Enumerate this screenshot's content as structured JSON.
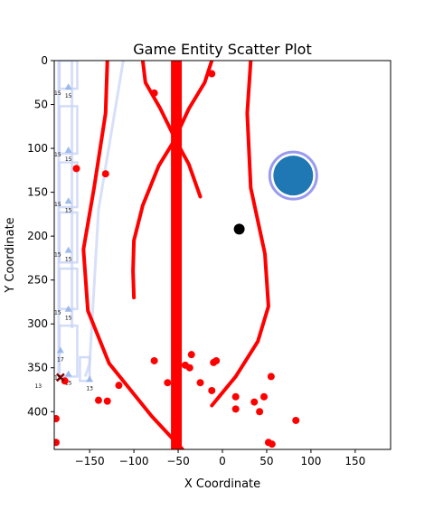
{
  "chart_data": {
    "type": "scatter",
    "title": "Game Entity Scatter Plot",
    "xlabel": "X Coordinate",
    "ylabel": "Y Coordinate",
    "xlim": [
      -190,
      190
    ],
    "ylim": [
      443,
      0
    ],
    "y_inverted": true,
    "grid": false,
    "xticks": [
      -150,
      -100,
      -50,
      0,
      50,
      100,
      150
    ],
    "yticks": [
      0,
      50,
      100,
      150,
      200,
      250,
      300,
      350,
      400
    ],
    "colors": {
      "red": "#ff0000",
      "blue": "#1f77b4",
      "ring": "#6f6fe8",
      "light_blue": "#c7d3f7",
      "marker_blue": "#8fb0e8",
      "dark_red": "#8b0000",
      "black": "#000000"
    },
    "red_points": [
      [
        -77,
        37
      ],
      [
        -12,
        15
      ],
      [
        -165,
        123
      ],
      [
        -132,
        129
      ],
      [
        -178,
        365
      ],
      [
        -77,
        342
      ],
      [
        -35,
        335
      ],
      [
        -10,
        344
      ],
      [
        -7,
        342
      ],
      [
        -42,
        347
      ],
      [
        -37,
        350
      ],
      [
        -62,
        367
      ],
      [
        -25,
        367
      ],
      [
        -12,
        376
      ],
      [
        -117,
        370
      ],
      [
        -140,
        387
      ],
      [
        -130,
        388
      ],
      [
        15,
        383
      ],
      [
        15,
        397
      ],
      [
        47,
        383
      ],
      [
        55,
        360
      ],
      [
        36,
        389
      ],
      [
        42,
        400
      ],
      [
        83,
        410
      ],
      [
        -188,
        408
      ],
      [
        -188,
        435
      ],
      [
        52,
        435
      ],
      [
        56,
        437
      ]
    ],
    "black_point": [
      19,
      192
    ],
    "blue_circle": [
      80,
      131
    ],
    "x_marker": [
      -183,
      361
    ],
    "red_lines": [
      {
        "points": [
          [
            -52,
            0
          ],
          [
            -52,
            443
          ]
        ],
        "width": 12
      },
      {
        "points": [
          [
            -130,
            0
          ],
          [
            -132,
            60
          ],
          [
            -145,
            145
          ],
          [
            -157,
            215
          ],
          [
            -152,
            285
          ],
          [
            -128,
            345
          ],
          [
            -80,
            405
          ],
          [
            -45,
            443
          ]
        ],
        "width": 4
      },
      {
        "points": [
          [
            -90,
            0
          ],
          [
            -87,
            25
          ],
          [
            -70,
            55
          ],
          [
            -52,
            92
          ],
          [
            -38,
            118
          ],
          [
            -25,
            155
          ]
        ],
        "width": 4
      },
      {
        "points": [
          [
            -12,
            0
          ],
          [
            -20,
            25
          ],
          [
            -38,
            55
          ],
          [
            -55,
            92
          ],
          [
            -72,
            120
          ],
          [
            -90,
            165
          ],
          [
            -100,
            205
          ],
          [
            -101,
            240
          ],
          [
            -100,
            270
          ]
        ],
        "width": 4
      },
      {
        "points": [
          [
            32,
            0
          ],
          [
            28,
            60
          ],
          [
            32,
            145
          ],
          [
            48,
            220
          ],
          [
            52,
            280
          ],
          [
            40,
            320
          ],
          [
            15,
            360
          ],
          [
            -12,
            393
          ]
        ],
        "width": 4
      }
    ],
    "light_lines": [
      [
        [
          -112,
          0
        ],
        [
          -140,
          170
        ],
        [
          -150,
          345
        ],
        [
          -155,
          360
        ]
      ],
      [
        [
          -185,
          0
        ],
        [
          -185,
          360
        ]
      ],
      [
        [
          -170,
          0
        ],
        [
          -170,
          305
        ]
      ]
    ],
    "light_boxes": [
      [
        -184,
        0,
        -164,
        32
      ],
      [
        -184,
        52,
        -164,
        106
      ],
      [
        -184,
        116,
        -164,
        167
      ],
      [
        -184,
        173,
        -164,
        230
      ],
      [
        -184,
        237,
        -164,
        283
      ],
      [
        -184,
        302,
        -164,
        360
      ],
      [
        -161,
        338,
        -150,
        365
      ]
    ],
    "triangles": [
      {
        "xy": [
          -174,
          30
        ],
        "label": "15"
      },
      {
        "xy": [
          -174,
          102
        ],
        "label": "15"
      },
      {
        "xy": [
          -174,
          160
        ],
        "label": "15"
      },
      {
        "xy": [
          -174,
          216
        ],
        "label": "15"
      },
      {
        "xy": [
          -174,
          283
        ],
        "label": "15"
      },
      {
        "xy": [
          -174,
          357
        ],
        "label": "15"
      },
      {
        "xy": [
          -183,
          330
        ],
        "label": "17"
      },
      {
        "xy": [
          -150,
          363
        ],
        "label": "13"
      }
    ],
    "side_labels": [
      {
        "xy": [
          -190,
          39
        ],
        "label": "15"
      },
      {
        "xy": [
          -190,
          109
        ],
        "label": "15"
      },
      {
        "xy": [
          -190,
          166
        ],
        "label": "15"
      },
      {
        "xy": [
          -190,
          223
        ],
        "label": "15"
      },
      {
        "xy": [
          -190,
          289
        ],
        "label": "15"
      },
      {
        "xy": [
          -190,
          363
        ],
        "label": "15"
      },
      {
        "xy": [
          -212,
          373
        ],
        "label": "13"
      }
    ]
  }
}
